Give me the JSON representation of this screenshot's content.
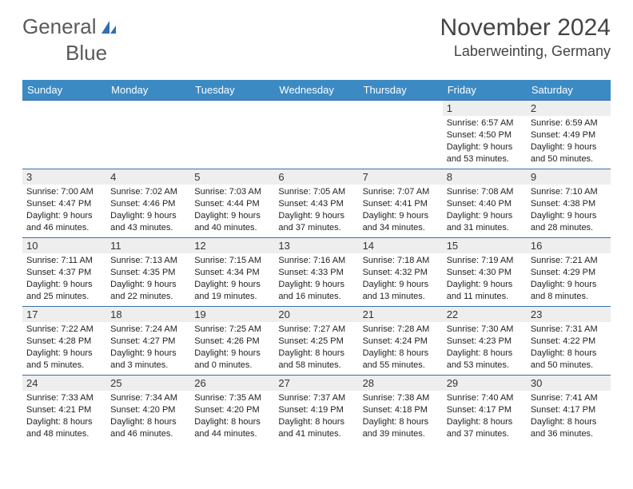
{
  "brand": {
    "part1": "General",
    "part2": "Blue"
  },
  "title": "November 2024",
  "location": "Laberweinting, Germany",
  "colors": {
    "header_bg": "#3b8ac4",
    "header_text": "#ffffff",
    "row_border": "#3b6fa0",
    "daynum_bg": "#eeeeee",
    "brand_gray": "#5a5a5a",
    "brand_blue": "#2f6fb0"
  },
  "day_headers": [
    "Sunday",
    "Monday",
    "Tuesday",
    "Wednesday",
    "Thursday",
    "Friday",
    "Saturday"
  ],
  "weeks": [
    [
      {
        "n": "",
        "sr": "",
        "ss": "",
        "dl": ""
      },
      {
        "n": "",
        "sr": "",
        "ss": "",
        "dl": ""
      },
      {
        "n": "",
        "sr": "",
        "ss": "",
        "dl": ""
      },
      {
        "n": "",
        "sr": "",
        "ss": "",
        "dl": ""
      },
      {
        "n": "",
        "sr": "",
        "ss": "",
        "dl": ""
      },
      {
        "n": "1",
        "sr": "6:57 AM",
        "ss": "4:50 PM",
        "dl": "9 hours and 53 minutes."
      },
      {
        "n": "2",
        "sr": "6:59 AM",
        "ss": "4:49 PM",
        "dl": "9 hours and 50 minutes."
      }
    ],
    [
      {
        "n": "3",
        "sr": "7:00 AM",
        "ss": "4:47 PM",
        "dl": "9 hours and 46 minutes."
      },
      {
        "n": "4",
        "sr": "7:02 AM",
        "ss": "4:46 PM",
        "dl": "9 hours and 43 minutes."
      },
      {
        "n": "5",
        "sr": "7:03 AM",
        "ss": "4:44 PM",
        "dl": "9 hours and 40 minutes."
      },
      {
        "n": "6",
        "sr": "7:05 AM",
        "ss": "4:43 PM",
        "dl": "9 hours and 37 minutes."
      },
      {
        "n": "7",
        "sr": "7:07 AM",
        "ss": "4:41 PM",
        "dl": "9 hours and 34 minutes."
      },
      {
        "n": "8",
        "sr": "7:08 AM",
        "ss": "4:40 PM",
        "dl": "9 hours and 31 minutes."
      },
      {
        "n": "9",
        "sr": "7:10 AM",
        "ss": "4:38 PM",
        "dl": "9 hours and 28 minutes."
      }
    ],
    [
      {
        "n": "10",
        "sr": "7:11 AM",
        "ss": "4:37 PM",
        "dl": "9 hours and 25 minutes."
      },
      {
        "n": "11",
        "sr": "7:13 AM",
        "ss": "4:35 PM",
        "dl": "9 hours and 22 minutes."
      },
      {
        "n": "12",
        "sr": "7:15 AM",
        "ss": "4:34 PM",
        "dl": "9 hours and 19 minutes."
      },
      {
        "n": "13",
        "sr": "7:16 AM",
        "ss": "4:33 PM",
        "dl": "9 hours and 16 minutes."
      },
      {
        "n": "14",
        "sr": "7:18 AM",
        "ss": "4:32 PM",
        "dl": "9 hours and 13 minutes."
      },
      {
        "n": "15",
        "sr": "7:19 AM",
        "ss": "4:30 PM",
        "dl": "9 hours and 11 minutes."
      },
      {
        "n": "16",
        "sr": "7:21 AM",
        "ss": "4:29 PM",
        "dl": "9 hours and 8 minutes."
      }
    ],
    [
      {
        "n": "17",
        "sr": "7:22 AM",
        "ss": "4:28 PM",
        "dl": "9 hours and 5 minutes."
      },
      {
        "n": "18",
        "sr": "7:24 AM",
        "ss": "4:27 PM",
        "dl": "9 hours and 3 minutes."
      },
      {
        "n": "19",
        "sr": "7:25 AM",
        "ss": "4:26 PM",
        "dl": "9 hours and 0 minutes."
      },
      {
        "n": "20",
        "sr": "7:27 AM",
        "ss": "4:25 PM",
        "dl": "8 hours and 58 minutes."
      },
      {
        "n": "21",
        "sr": "7:28 AM",
        "ss": "4:24 PM",
        "dl": "8 hours and 55 minutes."
      },
      {
        "n": "22",
        "sr": "7:30 AM",
        "ss": "4:23 PM",
        "dl": "8 hours and 53 minutes."
      },
      {
        "n": "23",
        "sr": "7:31 AM",
        "ss": "4:22 PM",
        "dl": "8 hours and 50 minutes."
      }
    ],
    [
      {
        "n": "24",
        "sr": "7:33 AM",
        "ss": "4:21 PM",
        "dl": "8 hours and 48 minutes."
      },
      {
        "n": "25",
        "sr": "7:34 AM",
        "ss": "4:20 PM",
        "dl": "8 hours and 46 minutes."
      },
      {
        "n": "26",
        "sr": "7:35 AM",
        "ss": "4:20 PM",
        "dl": "8 hours and 44 minutes."
      },
      {
        "n": "27",
        "sr": "7:37 AM",
        "ss": "4:19 PM",
        "dl": "8 hours and 41 minutes."
      },
      {
        "n": "28",
        "sr": "7:38 AM",
        "ss": "4:18 PM",
        "dl": "8 hours and 39 minutes."
      },
      {
        "n": "29",
        "sr": "7:40 AM",
        "ss": "4:17 PM",
        "dl": "8 hours and 37 minutes."
      },
      {
        "n": "30",
        "sr": "7:41 AM",
        "ss": "4:17 PM",
        "dl": "8 hours and 36 minutes."
      }
    ]
  ],
  "labels": {
    "sunrise": "Sunrise:",
    "sunset": "Sunset:",
    "daylight": "Daylight:"
  }
}
